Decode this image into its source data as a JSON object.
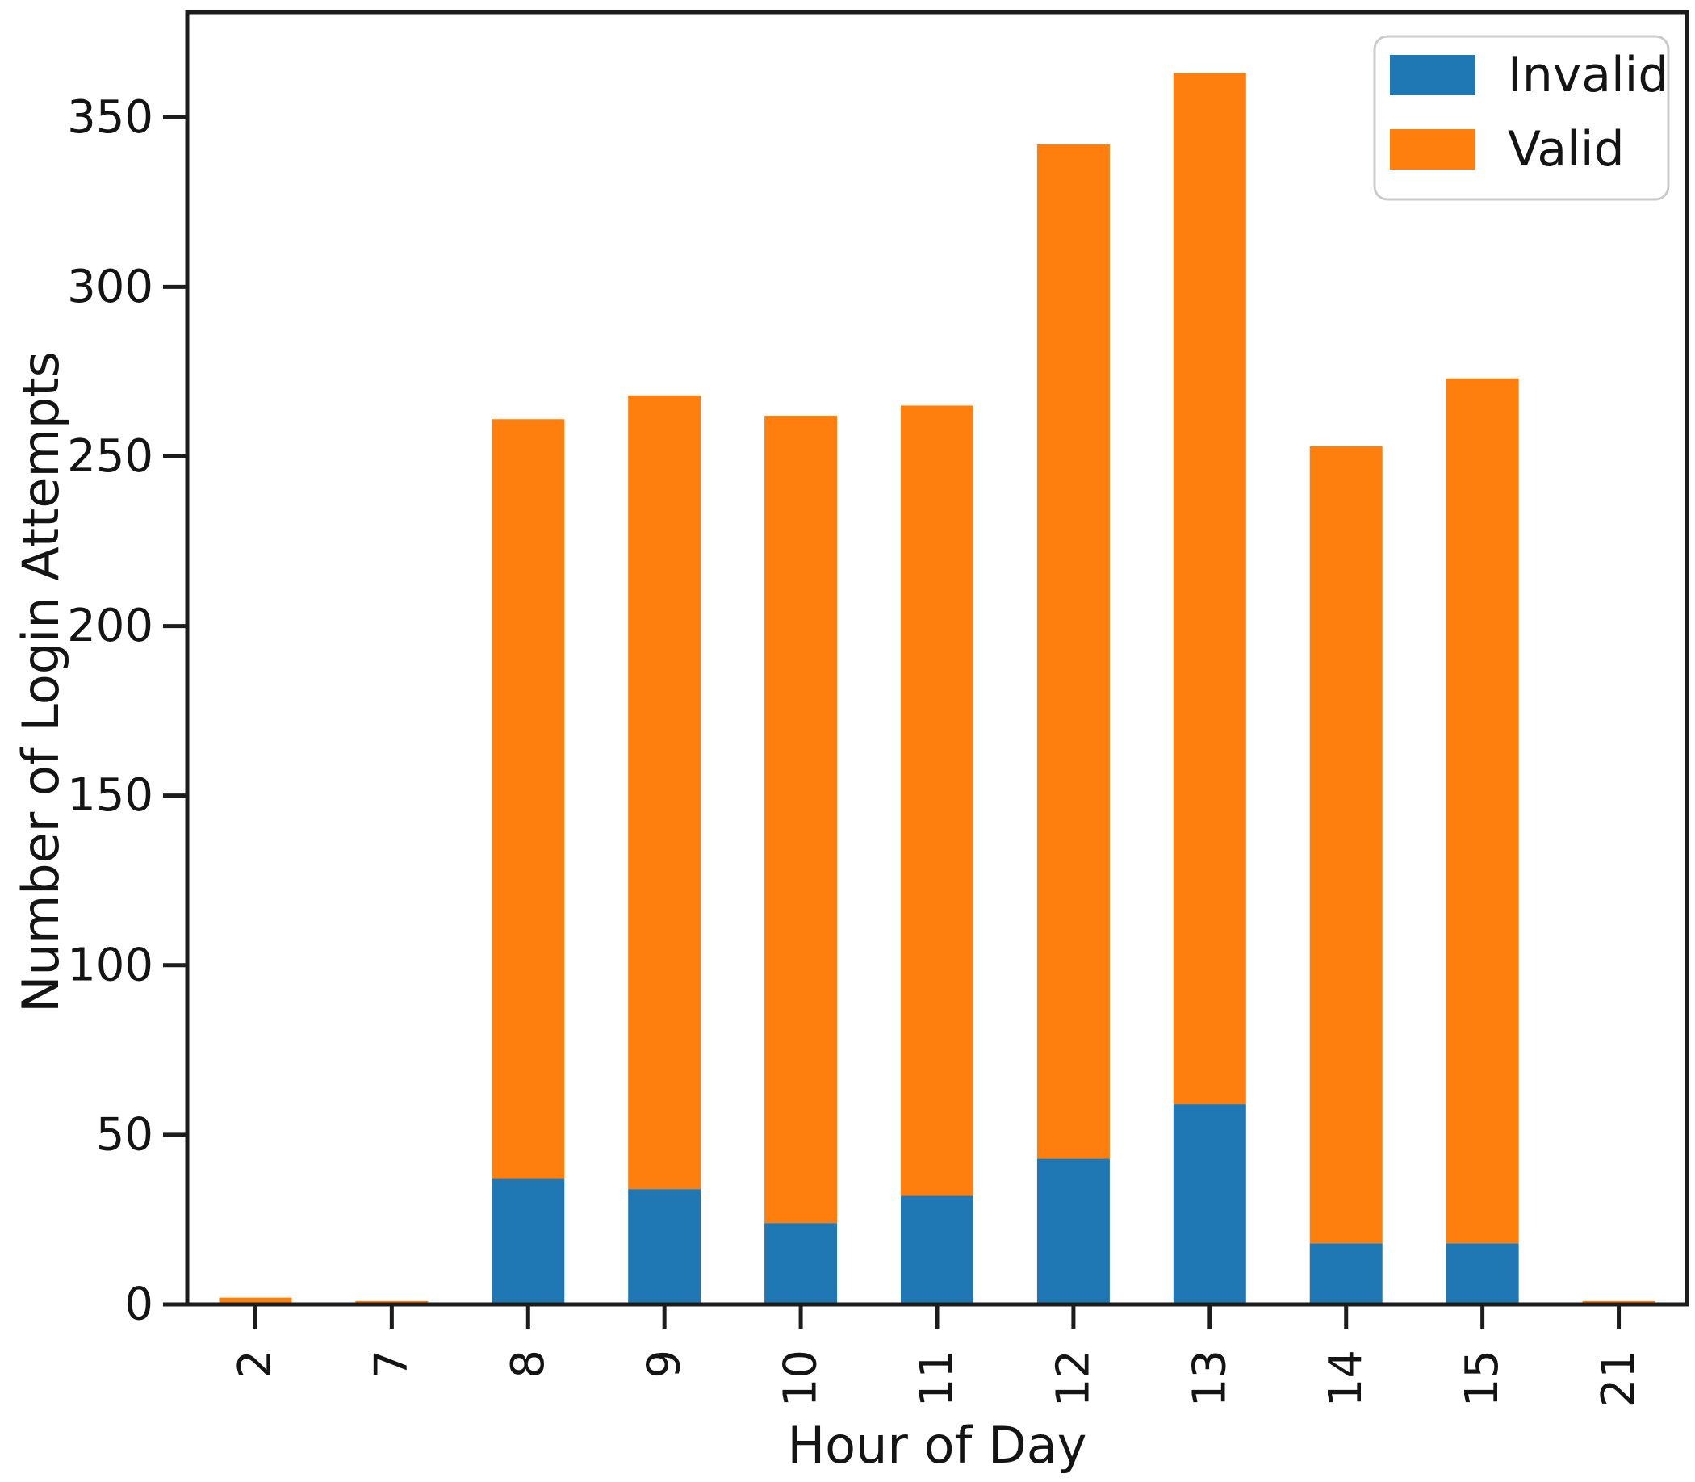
{
  "chart_data": {
    "type": "bar",
    "stacked": true,
    "title": "",
    "xlabel": "Hour of Day",
    "ylabel": "Number of Login Attempts",
    "categories": [
      "2",
      "7",
      "8",
      "9",
      "10",
      "11",
      "12",
      "13",
      "14",
      "15",
      "21"
    ],
    "series": [
      {
        "name": "Invalid",
        "color": "#1f77b4",
        "values": [
          0,
          0,
          37,
          34,
          24,
          32,
          43,
          59,
          18,
          18,
          0
        ]
      },
      {
        "name": "Valid",
        "color": "#ff7f0e",
        "values": [
          2,
          1,
          224,
          234,
          238,
          233,
          299,
          304,
          235,
          255,
          1
        ]
      }
    ],
    "stacked_totals": [
      2,
      1,
      261,
      268,
      262,
      265,
      342,
      363,
      253,
      273,
      1
    ],
    "yticks": [
      0,
      50,
      100,
      150,
      200,
      250,
      300,
      350
    ],
    "ylim": [
      0,
      381
    ],
    "x_tick_label_rotation": 90,
    "grid": false,
    "legend": {
      "position": "upper right",
      "entries": [
        "Invalid",
        "Valid"
      ]
    }
  }
}
